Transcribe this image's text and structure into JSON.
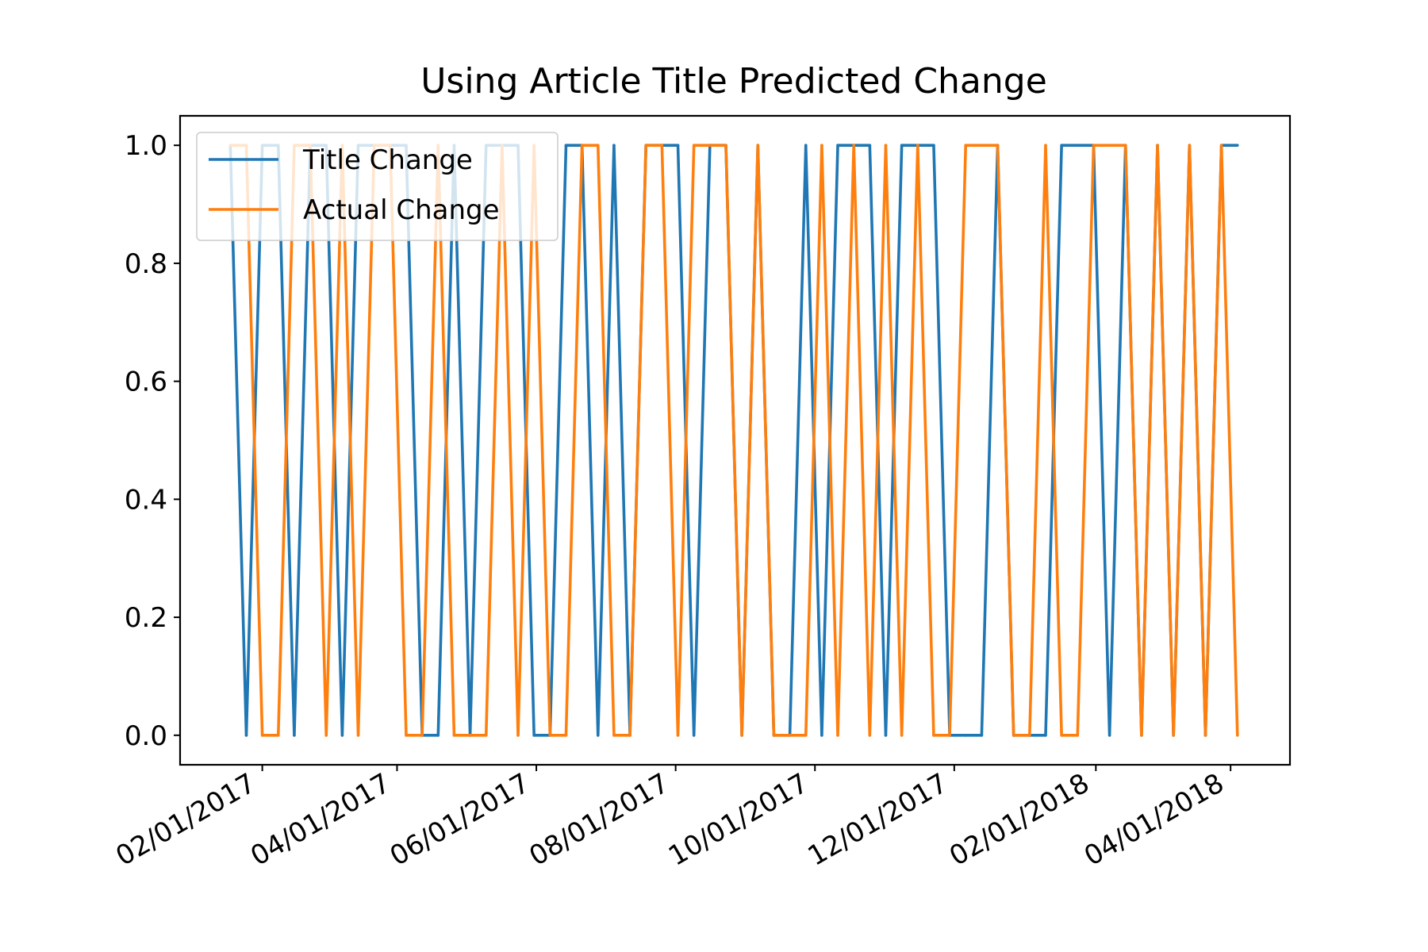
{
  "chart_data": {
    "type": "line",
    "title": "Using Article Title Predicted Change",
    "xlabel": "",
    "ylabel": "",
    "x_format": "MM/DD/YYYY",
    "xlim": [
      "2016-12-27",
      "2018-04-27"
    ],
    "ylim": [
      -0.05,
      1.05
    ],
    "x_ticks": [
      "2017-02-01",
      "2017-04-01",
      "2017-06-01",
      "2017-08-01",
      "2017-10-01",
      "2017-12-01",
      "2018-02-01",
      "2018-04-01"
    ],
    "x_tick_labels": [
      "02/01/2017",
      "04/01/2017",
      "06/01/2017",
      "08/01/2017",
      "10/01/2017",
      "12/01/2017",
      "02/01/2018",
      "04/01/2018"
    ],
    "y_ticks": [
      0.0,
      0.2,
      0.4,
      0.6,
      0.8,
      1.0
    ],
    "y_tick_labels": [
      "0.0",
      "0.2",
      "0.4",
      "0.6",
      "0.8",
      "1.0"
    ],
    "grid": false,
    "legend_position": "upper-left",
    "x": [
      "2017-01-18",
      "2017-01-25",
      "2017-02-01",
      "2017-02-08",
      "2017-02-15",
      "2017-02-22",
      "2017-03-01",
      "2017-03-08",
      "2017-03-15",
      "2017-03-22",
      "2017-03-29",
      "2017-04-05",
      "2017-04-12",
      "2017-04-19",
      "2017-04-26",
      "2017-05-03",
      "2017-05-10",
      "2017-05-17",
      "2017-05-24",
      "2017-05-31",
      "2017-06-07",
      "2017-06-14",
      "2017-06-21",
      "2017-06-28",
      "2017-07-05",
      "2017-07-12",
      "2017-07-19",
      "2017-07-26",
      "2017-08-02",
      "2017-08-09",
      "2017-08-16",
      "2017-08-23",
      "2017-08-30",
      "2017-09-06",
      "2017-09-13",
      "2017-09-20",
      "2017-09-27",
      "2017-10-04",
      "2017-10-11",
      "2017-10-18",
      "2017-10-25",
      "2017-11-01",
      "2017-11-08",
      "2017-11-15",
      "2017-11-22",
      "2017-11-29",
      "2017-12-06",
      "2017-12-13",
      "2017-12-20",
      "2017-12-27",
      "2018-01-03",
      "2018-01-10",
      "2018-01-17",
      "2018-01-24",
      "2018-01-31",
      "2018-02-07",
      "2018-02-14",
      "2018-02-21",
      "2018-02-28",
      "2018-03-07",
      "2018-03-14",
      "2018-03-21",
      "2018-03-28",
      "2018-04-04"
    ],
    "series": [
      {
        "name": "Title Change",
        "color": "#1f77b4",
        "values": [
          1,
          0,
          1,
          1,
          0,
          1,
          1,
          0,
          1,
          1,
          1,
          1,
          0,
          0,
          1,
          0,
          1,
          1,
          1,
          0,
          0,
          1,
          1,
          0,
          1,
          0,
          1,
          1,
          1,
          0,
          1,
          1,
          0,
          1,
          0,
          0,
          1,
          0,
          1,
          1,
          1,
          0,
          1,
          1,
          1,
          0,
          0,
          0,
          1,
          0,
          0,
          0,
          1,
          1,
          1,
          0,
          1,
          0,
          1,
          0,
          1,
          0,
          1,
          1
        ]
      },
      {
        "name": "Actual Change",
        "color": "#ff7f0e",
        "values": [
          1,
          1,
          0,
          0,
          1,
          1,
          0,
          1,
          0,
          1,
          1,
          0,
          0,
          1,
          0,
          0,
          0,
          1,
          0,
          1,
          0,
          0,
          1,
          1,
          0,
          0,
          1,
          1,
          0,
          1,
          1,
          1,
          0,
          1,
          0,
          0,
          0,
          1,
          0,
          1,
          0,
          1,
          0,
          1,
          0,
          0,
          1,
          1,
          1,
          0,
          0,
          1,
          0,
          0,
          1,
          1,
          1,
          0,
          1,
          0,
          1,
          0,
          1,
          0
        ]
      }
    ]
  }
}
